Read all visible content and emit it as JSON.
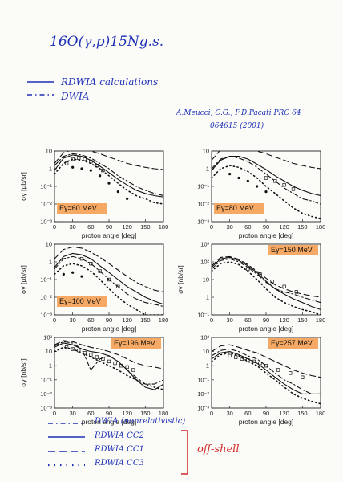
{
  "header": {
    "reaction": "16O(γ,p)15Ng.s.",
    "legend_rdwia": "RDWIA calculations",
    "legend_dwia": "DWIA",
    "citation_line1": "A.Meucci, C.G., F.D.Pacati PRC 64",
    "citation_line2": "064615 (2001)"
  },
  "footer": {
    "items": [
      {
        "label": "DWIA (nonrelativistic)"
      },
      {
        "label": "RDWIA CC2"
      },
      {
        "label": "RDWIA CC1"
      },
      {
        "label": "RDWIA CC3"
      }
    ],
    "bracket_note": "off-shell"
  },
  "colors": {
    "ink": "#1c2fb5",
    "highlight": "#f49a4a",
    "red": "#d22a2a"
  },
  "chart_data": [
    {
      "type": "line",
      "ylabel": "σγ [μb/sr]",
      "xlabel": "proton angle [deg]",
      "energy_label": "Eγ=60 MeV",
      "xlim": [
        0,
        180
      ],
      "log_y": true,
      "ylim_exp": [
        -3,
        1
      ],
      "xticks": [
        "0",
        "30",
        "60",
        "90",
        "120",
        "150",
        "180"
      ],
      "yticks": [
        "10",
        "1",
        "10⁻¹",
        "10⁻²",
        "10⁻³"
      ],
      "series": [
        {
          "style": "solid",
          "x": [
            0,
            15,
            30,
            45,
            60,
            75,
            90,
            105,
            120,
            135,
            150,
            165,
            180
          ],
          "y": [
            0.8,
            4,
            6,
            5,
            3,
            1.4,
            0.6,
            0.25,
            0.12,
            0.06,
            0.04,
            0.03,
            0.025
          ]
        },
        {
          "style": "dashed",
          "x": [
            0,
            15,
            30,
            45,
            60,
            75,
            90,
            105,
            120,
            135,
            150,
            165,
            180
          ],
          "y": [
            2,
            8,
            12,
            12,
            10,
            7,
            4.5,
            3,
            2,
            1.5,
            1.2,
            1,
            0.9
          ]
        },
        {
          "style": "dashdot",
          "x": [
            0,
            15,
            30,
            45,
            60,
            75,
            90,
            105,
            120,
            135,
            150,
            165,
            180
          ],
          "y": [
            1.5,
            5,
            7,
            6,
            4,
            2,
            1,
            0.4,
            0.2,
            0.1,
            0.06,
            0.04,
            0.03
          ]
        },
        {
          "style": "dotted",
          "x": [
            0,
            15,
            30,
            45,
            60,
            75,
            90,
            105,
            120,
            135,
            150,
            165,
            180
          ],
          "y": [
            0.5,
            2,
            3.5,
            3,
            2,
            1,
            0.4,
            0.15,
            0.06,
            0.03,
            0.02,
            0.012,
            0.01
          ]
        }
      ],
      "points": [
        {
          "marker": "open",
          "x": [
            20,
            30,
            40,
            50,
            60,
            70,
            80
          ],
          "y": [
            2,
            3.5,
            4,
            3.5,
            2.5,
            1.5,
            0.8
          ]
        },
        {
          "marker": "filled",
          "x": [
            30,
            45,
            60,
            75,
            90,
            105,
            120
          ],
          "y": [
            1.2,
            1,
            0.8,
            0.4,
            0.15,
            0.05,
            0.02
          ]
        }
      ]
    },
    {
      "type": "line",
      "ylabel": "",
      "xlabel": "proton angle [deg]",
      "energy_label": "Eγ=80 MeV",
      "xlim": [
        0,
        180
      ],
      "log_y": true,
      "ylim_exp": [
        -3,
        1
      ],
      "xticks": [
        "0",
        "30",
        "60",
        "90",
        "120",
        "150",
        "180"
      ],
      "yticks": [
        "10",
        "1",
        "10⁻¹",
        "10⁻²",
        "10⁻³"
      ],
      "series": [
        {
          "style": "solid",
          "x": [
            0,
            15,
            30,
            45,
            60,
            75,
            90,
            105,
            120,
            135,
            150,
            165,
            180
          ],
          "y": [
            0.8,
            3,
            5,
            5,
            3.5,
            1.8,
            0.9,
            0.4,
            0.2,
            0.1,
            0.06,
            0.04,
            0.03
          ]
        },
        {
          "style": "dashed",
          "x": [
            0,
            15,
            30,
            45,
            60,
            75,
            90,
            105,
            120,
            135,
            150,
            165,
            180
          ],
          "y": [
            3,
            12,
            18,
            18,
            14,
            10,
            7,
            4.5,
            3,
            2,
            1.5,
            1.2,
            1
          ]
        },
        {
          "style": "dashdot",
          "x": [
            0,
            15,
            30,
            45,
            60,
            75,
            90,
            105,
            120,
            135,
            150,
            165,
            180
          ],
          "y": [
            1,
            3.5,
            5,
            4,
            2.5,
            1.2,
            0.5,
            0.2,
            0.08,
            0.04,
            0.02,
            0.015,
            0.01
          ]
        },
        {
          "style": "dotted",
          "x": [
            0,
            15,
            30,
            45,
            60,
            75,
            90,
            105,
            120,
            135,
            150,
            165,
            180
          ],
          "y": [
            0.3,
            1,
            1.5,
            1.2,
            0.7,
            0.3,
            0.1,
            0.04,
            0.015,
            0.006,
            0.003,
            0.002,
            0.0015
          ]
        }
      ],
      "points": [
        {
          "marker": "open",
          "x": [
            90,
            105,
            120,
            135
          ],
          "y": [
            0.3,
            0.2,
            0.12,
            0.07
          ]
        },
        {
          "marker": "filled",
          "x": [
            30,
            45,
            60,
            75,
            90
          ],
          "y": [
            0.5,
            0.3,
            0.2,
            0.1,
            0.05
          ]
        }
      ]
    },
    {
      "type": "line",
      "ylabel": "σγ [μb/sr]",
      "xlabel": "proton angle [deg]",
      "energy_label": "Eγ=100 MeV",
      "xlim": [
        0,
        180
      ],
      "log_y": true,
      "ylim_exp": [
        -3,
        1
      ],
      "xticks": [
        "0",
        "30",
        "60",
        "90",
        "120",
        "150",
        "180"
      ],
      "yticks": [
        "10",
        "1",
        "10⁻¹",
        "10⁻²",
        "10⁻³"
      ],
      "series": [
        {
          "style": "solid",
          "x": [
            0,
            15,
            30,
            45,
            60,
            75,
            90,
            105,
            120,
            135,
            150,
            165,
            180
          ],
          "y": [
            0.5,
            2,
            3,
            2.5,
            1.5,
            0.6,
            0.25,
            0.1,
            0.04,
            0.02,
            0.01,
            0.006,
            0.004
          ]
        },
        {
          "style": "dashed",
          "x": [
            0,
            15,
            30,
            45,
            60,
            75,
            90,
            105,
            120,
            135,
            150,
            165,
            180
          ],
          "y": [
            1.5,
            5,
            7,
            6,
            3.5,
            1.8,
            0.8,
            0.35,
            0.15,
            0.07,
            0.04,
            0.025,
            0.02
          ]
        },
        {
          "style": "dashdot",
          "x": [
            0,
            15,
            30,
            45,
            60,
            75,
            90,
            105,
            120,
            135,
            150,
            165,
            180
          ],
          "y": [
            0.4,
            1.5,
            2,
            1.5,
            0.8,
            0.3,
            0.1,
            0.04,
            0.015,
            0.008,
            0.005,
            0.004,
            0.003
          ]
        },
        {
          "style": "dotted",
          "x": [
            0,
            15,
            30,
            45,
            60,
            75,
            90,
            105,
            120,
            135,
            150,
            165,
            180
          ],
          "y": [
            0.2,
            0.6,
            0.8,
            0.6,
            0.3,
            0.1,
            0.03,
            0.01,
            0.004,
            0.002,
            0.001,
            0.001,
            0.001
          ]
        }
      ],
      "points": [
        {
          "marker": "open",
          "x": [
            45,
            60,
            75,
            90,
            105
          ],
          "y": [
            1.5,
            0.8,
            0.3,
            0.1,
            0.04
          ]
        },
        {
          "marker": "filled",
          "x": [
            15,
            30,
            45
          ],
          "y": [
            0.2,
            0.25,
            0.15
          ]
        }
      ]
    },
    {
      "type": "line",
      "ylabel": "σγ [nb/sr]",
      "xlabel": "proton angle [deg]",
      "energy_label": "Eγ=150 MeV",
      "xlim": [
        0,
        180
      ],
      "log_y": true,
      "ylim_exp": [
        -1,
        3
      ],
      "xticks": [
        "0",
        "30",
        "60",
        "90",
        "120",
        "150",
        "180"
      ],
      "yticks": [
        "10³",
        "10²",
        "10",
        "1",
        "10⁻¹"
      ],
      "series": [
        {
          "style": "solid",
          "x": [
            0,
            15,
            30,
            45,
            60,
            75,
            90,
            105,
            120,
            135,
            150,
            165,
            180
          ],
          "y": [
            50,
            150,
            180,
            120,
            60,
            25,
            8,
            3,
            1.5,
            0.8,
            0.5,
            0.3,
            0.2
          ]
        },
        {
          "style": "dashed",
          "x": [
            0,
            15,
            30,
            45,
            60,
            75,
            90,
            105,
            120,
            135,
            150,
            165,
            180
          ],
          "y": [
            60,
            180,
            200,
            140,
            70,
            30,
            12,
            5,
            3,
            2,
            1.5,
            1.2,
            1
          ]
        },
        {
          "style": "dashdot",
          "x": [
            0,
            15,
            30,
            45,
            60,
            75,
            90,
            105,
            120,
            135,
            150,
            165,
            180
          ],
          "y": [
            40,
            120,
            150,
            100,
            50,
            20,
            7,
            3,
            2,
            1.5,
            1,
            0.7,
            0.5
          ]
        },
        {
          "style": "dotted",
          "x": [
            0,
            15,
            30,
            45,
            60,
            75,
            90,
            105,
            120,
            135,
            150,
            165,
            180
          ],
          "y": [
            30,
            80,
            100,
            70,
            30,
            10,
            3,
            1,
            0.5,
            0.3,
            0.2,
            0.15,
            0.1
          ]
        }
      ],
      "points": [
        {
          "marker": "open",
          "x": [
            60,
            80,
            100,
            120,
            140
          ],
          "y": [
            40,
            20,
            8,
            4,
            2
          ]
        }
      ]
    },
    {
      "type": "line",
      "ylabel": "σγ [nb/sr]",
      "xlabel": "proton angle [deg]",
      "energy_label": "Eγ=196 MeV",
      "xlim": [
        0,
        180
      ],
      "log_y": true,
      "ylim_exp": [
        -3,
        2
      ],
      "xticks": [
        "0",
        "30",
        "60",
        "90",
        "120",
        "150",
        "180"
      ],
      "yticks": [
        "10²",
        "10",
        "1",
        "10⁻¹",
        "10⁻²",
        "10⁻³"
      ],
      "series": [
        {
          "style": "solid",
          "x": [
            0,
            15,
            30,
            45,
            60,
            75,
            90,
            105,
            120,
            135,
            150,
            165,
            180
          ],
          "y": [
            20,
            40,
            30,
            15,
            10,
            8,
            5,
            2,
            0.5,
            0.1,
            0.03,
            0.02,
            0.05
          ]
        },
        {
          "style": "dashed",
          "x": [
            0,
            15,
            30,
            45,
            60,
            75,
            90,
            105,
            120,
            135,
            150,
            165,
            180
          ],
          "y": [
            30,
            60,
            50,
            30,
            20,
            15,
            10,
            6,
            3,
            1.5,
            1,
            0.8,
            0.6
          ]
        },
        {
          "style": "dashdot",
          "x": [
            0,
            15,
            30,
            45,
            60,
            75,
            90,
            105,
            120,
            135,
            150,
            165,
            180
          ],
          "y": [
            25,
            50,
            40,
            15,
            0.5,
            3,
            5,
            2,
            0.5,
            0.15,
            0.05,
            0.05,
            0.1
          ]
        },
        {
          "style": "dotted",
          "x": [
            0,
            15,
            30,
            45,
            60,
            75,
            90,
            105,
            120,
            135,
            150,
            165,
            180
          ],
          "y": [
            10,
            20,
            15,
            8,
            4,
            2,
            1,
            0.5,
            0.2,
            0.1,
            0.05,
            0.03,
            0.02
          ]
        }
      ],
      "points": [
        {
          "marker": "open",
          "x": [
            20,
            30,
            40,
            50,
            60,
            70,
            80,
            90,
            100,
            110,
            120,
            130
          ],
          "y": [
            20,
            15,
            12,
            8,
            6,
            4,
            3,
            2,
            1.5,
            1,
            0.8,
            0.5
          ]
        }
      ]
    },
    {
      "type": "line",
      "ylabel": "",
      "xlabel": "proton angle [deg]",
      "energy_label": "Eγ=257 MeV",
      "xlim": [
        0,
        180
      ],
      "log_y": true,
      "ylim_exp": [
        -3,
        2
      ],
      "xticks": [
        "0",
        "30",
        "60",
        "90",
        "120",
        "150",
        "180"
      ],
      "yticks": [
        "10²",
        "10",
        "1",
        "10⁻¹",
        "10⁻²",
        "10⁻³"
      ],
      "series": [
        {
          "style": "solid",
          "x": [
            0,
            15,
            30,
            45,
            60,
            75,
            90,
            105,
            120,
            135,
            150,
            165,
            180
          ],
          "y": [
            3,
            8,
            10,
            6,
            3,
            1.5,
            0.5,
            0.15,
            0.05,
            0.02,
            0.01,
            0.01,
            0.01
          ]
        },
        {
          "style": "dashed",
          "x": [
            0,
            15,
            30,
            45,
            60,
            75,
            90,
            105,
            120,
            135,
            150,
            165,
            180
          ],
          "y": [
            10,
            25,
            30,
            20,
            12,
            8,
            4,
            2,
            1,
            0.5,
            0.3,
            0.2,
            0.15
          ]
        },
        {
          "style": "dashdot",
          "x": [
            0,
            15,
            30,
            45,
            60,
            75,
            90,
            105,
            120,
            135,
            150,
            165,
            180
          ],
          "y": [
            5,
            12,
            15,
            10,
            5,
            3,
            1,
            0.3,
            0.1,
            0.05,
            0.02,
            0.01,
            0.01
          ]
        },
        {
          "style": "dotted",
          "x": [
            0,
            15,
            30,
            45,
            60,
            75,
            90,
            105,
            120,
            135,
            150,
            165,
            180
          ],
          "y": [
            2,
            6,
            8,
            5,
            2,
            1,
            0.3,
            0.1,
            0.03,
            0.01,
            0.005,
            0.003,
            0.002
          ]
        }
      ],
      "points": [
        {
          "marker": "open",
          "x": [
            30,
            40,
            50,
            60,
            70,
            80,
            90,
            110,
            130,
            150
          ],
          "y": [
            5,
            4,
            3,
            2.5,
            2,
            1.5,
            1,
            0.5,
            0.3,
            0.15
          ]
        }
      ]
    }
  ]
}
